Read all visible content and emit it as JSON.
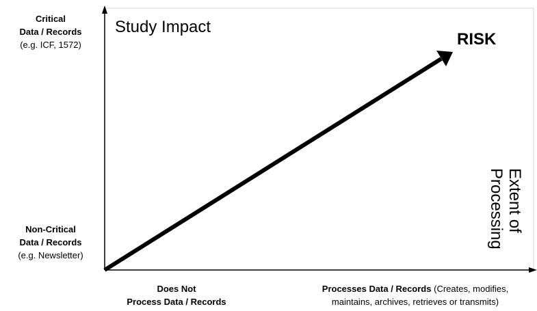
{
  "y_axis": {
    "top_label": {
      "line1": "Critical",
      "line2": "Data / Records",
      "example": "(e.g. ICF, 1572)"
    },
    "bottom_label": {
      "line1": "Non-Critical",
      "line2": "Data / Records",
      "example": "(e.g. Newsletter)"
    },
    "title": "Study Impact"
  },
  "x_axis": {
    "left_label": {
      "line1": "Does Not",
      "line2": "Process Data / Records"
    },
    "right_label": {
      "bold": "Processes Data / Records",
      "rest_line1": "(Creates, modifies,",
      "line2": "maintains, archives, retrieves or transmits)"
    },
    "title": [
      "Extent of",
      "Processing"
    ]
  },
  "arrow_label": "RISK",
  "colors": {
    "axis": "#000000",
    "frame": "#d9d9d9",
    "arrow": "#000000"
  }
}
